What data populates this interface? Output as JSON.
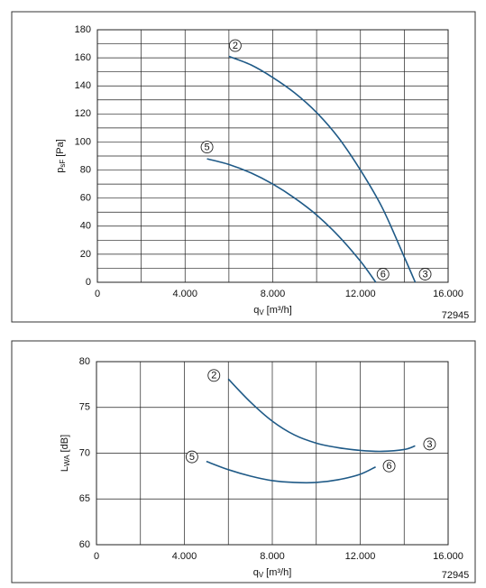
{
  "chart_data": [
    {
      "type": "line",
      "y_label": {
        "main": "p",
        "sub": "sF",
        "unit": "[Pa]"
      },
      "x_label": {
        "main": "q",
        "sub": "V",
        "unit": "[m³/h]"
      },
      "code": "72945",
      "xlim": [
        0,
        16000
      ],
      "xticks": [
        0,
        {
          "value": 4000,
          "label": "4.000"
        },
        {
          "value": 8000,
          "label": "8.000"
        },
        {
          "value": 12000,
          "label": "12.000"
        },
        {
          "value": 16000,
          "label": "16.000"
        }
      ],
      "ylim": [
        0,
        180
      ],
      "yticks": [
        0,
        20,
        40,
        60,
        80,
        100,
        120,
        140,
        160,
        180
      ],
      "grid": true,
      "xgrid": [
        2000,
        6000,
        10000,
        14000
      ],
      "ygrid": [
        10,
        30,
        50,
        70,
        90,
        110,
        130,
        150,
        170
      ],
      "color": "#1f5a87",
      "series": [
        {
          "start_label": "2",
          "end_label": "3",
          "x": [
            6000,
            7000,
            8000,
            9000,
            10000,
            11000,
            12000,
            13000,
            14000,
            14500
          ],
          "values": [
            161,
            155,
            146,
            135,
            121,
            103,
            80,
            53,
            18,
            0
          ]
        },
        {
          "start_label": "5",
          "end_label": "6",
          "x": [
            5000,
            6000,
            7000,
            8000,
            9000,
            10000,
            11000,
            12000,
            12700
          ],
          "values": [
            88,
            84,
            78,
            70,
            60,
            48,
            33,
            15,
            0
          ]
        }
      ]
    },
    {
      "type": "line",
      "y_label": {
        "main": "L",
        "sub": "WA",
        "unit": "[dB]"
      },
      "x_label": {
        "main": "q",
        "sub": "V",
        "unit": "[m³/h]"
      },
      "code": "72945",
      "xlim": [
        0,
        16000
      ],
      "xticks": [
        0,
        {
          "value": 4000,
          "label": "4.000"
        },
        {
          "value": 8000,
          "label": "8.000"
        },
        {
          "value": 12000,
          "label": "12.000"
        },
        {
          "value": 16000,
          "label": "16.000"
        }
      ],
      "ylim": [
        60,
        80
      ],
      "yticks": [
        60,
        65,
        70,
        75,
        80
      ],
      "grid": true,
      "xgrid": [
        2000,
        6000,
        10000,
        14000
      ],
      "ygrid": [],
      "color": "#1f5a87",
      "series": [
        {
          "start_label": "2",
          "end_label": "3",
          "x": [
            6000,
            7000,
            8000,
            9000,
            10000,
            11000,
            12000,
            13000,
            14000,
            14500
          ],
          "values": [
            78.1,
            75.6,
            73.5,
            72.0,
            71.1,
            70.6,
            70.3,
            70.2,
            70.4,
            70.8
          ]
        },
        {
          "start_label": "5",
          "end_label": "6",
          "x": [
            5000,
            6000,
            7000,
            8000,
            9000,
            10000,
            11000,
            12000,
            12700
          ],
          "values": [
            69.1,
            68.2,
            67.5,
            67.0,
            66.8,
            66.8,
            67.1,
            67.7,
            68.5
          ]
        }
      ]
    }
  ]
}
